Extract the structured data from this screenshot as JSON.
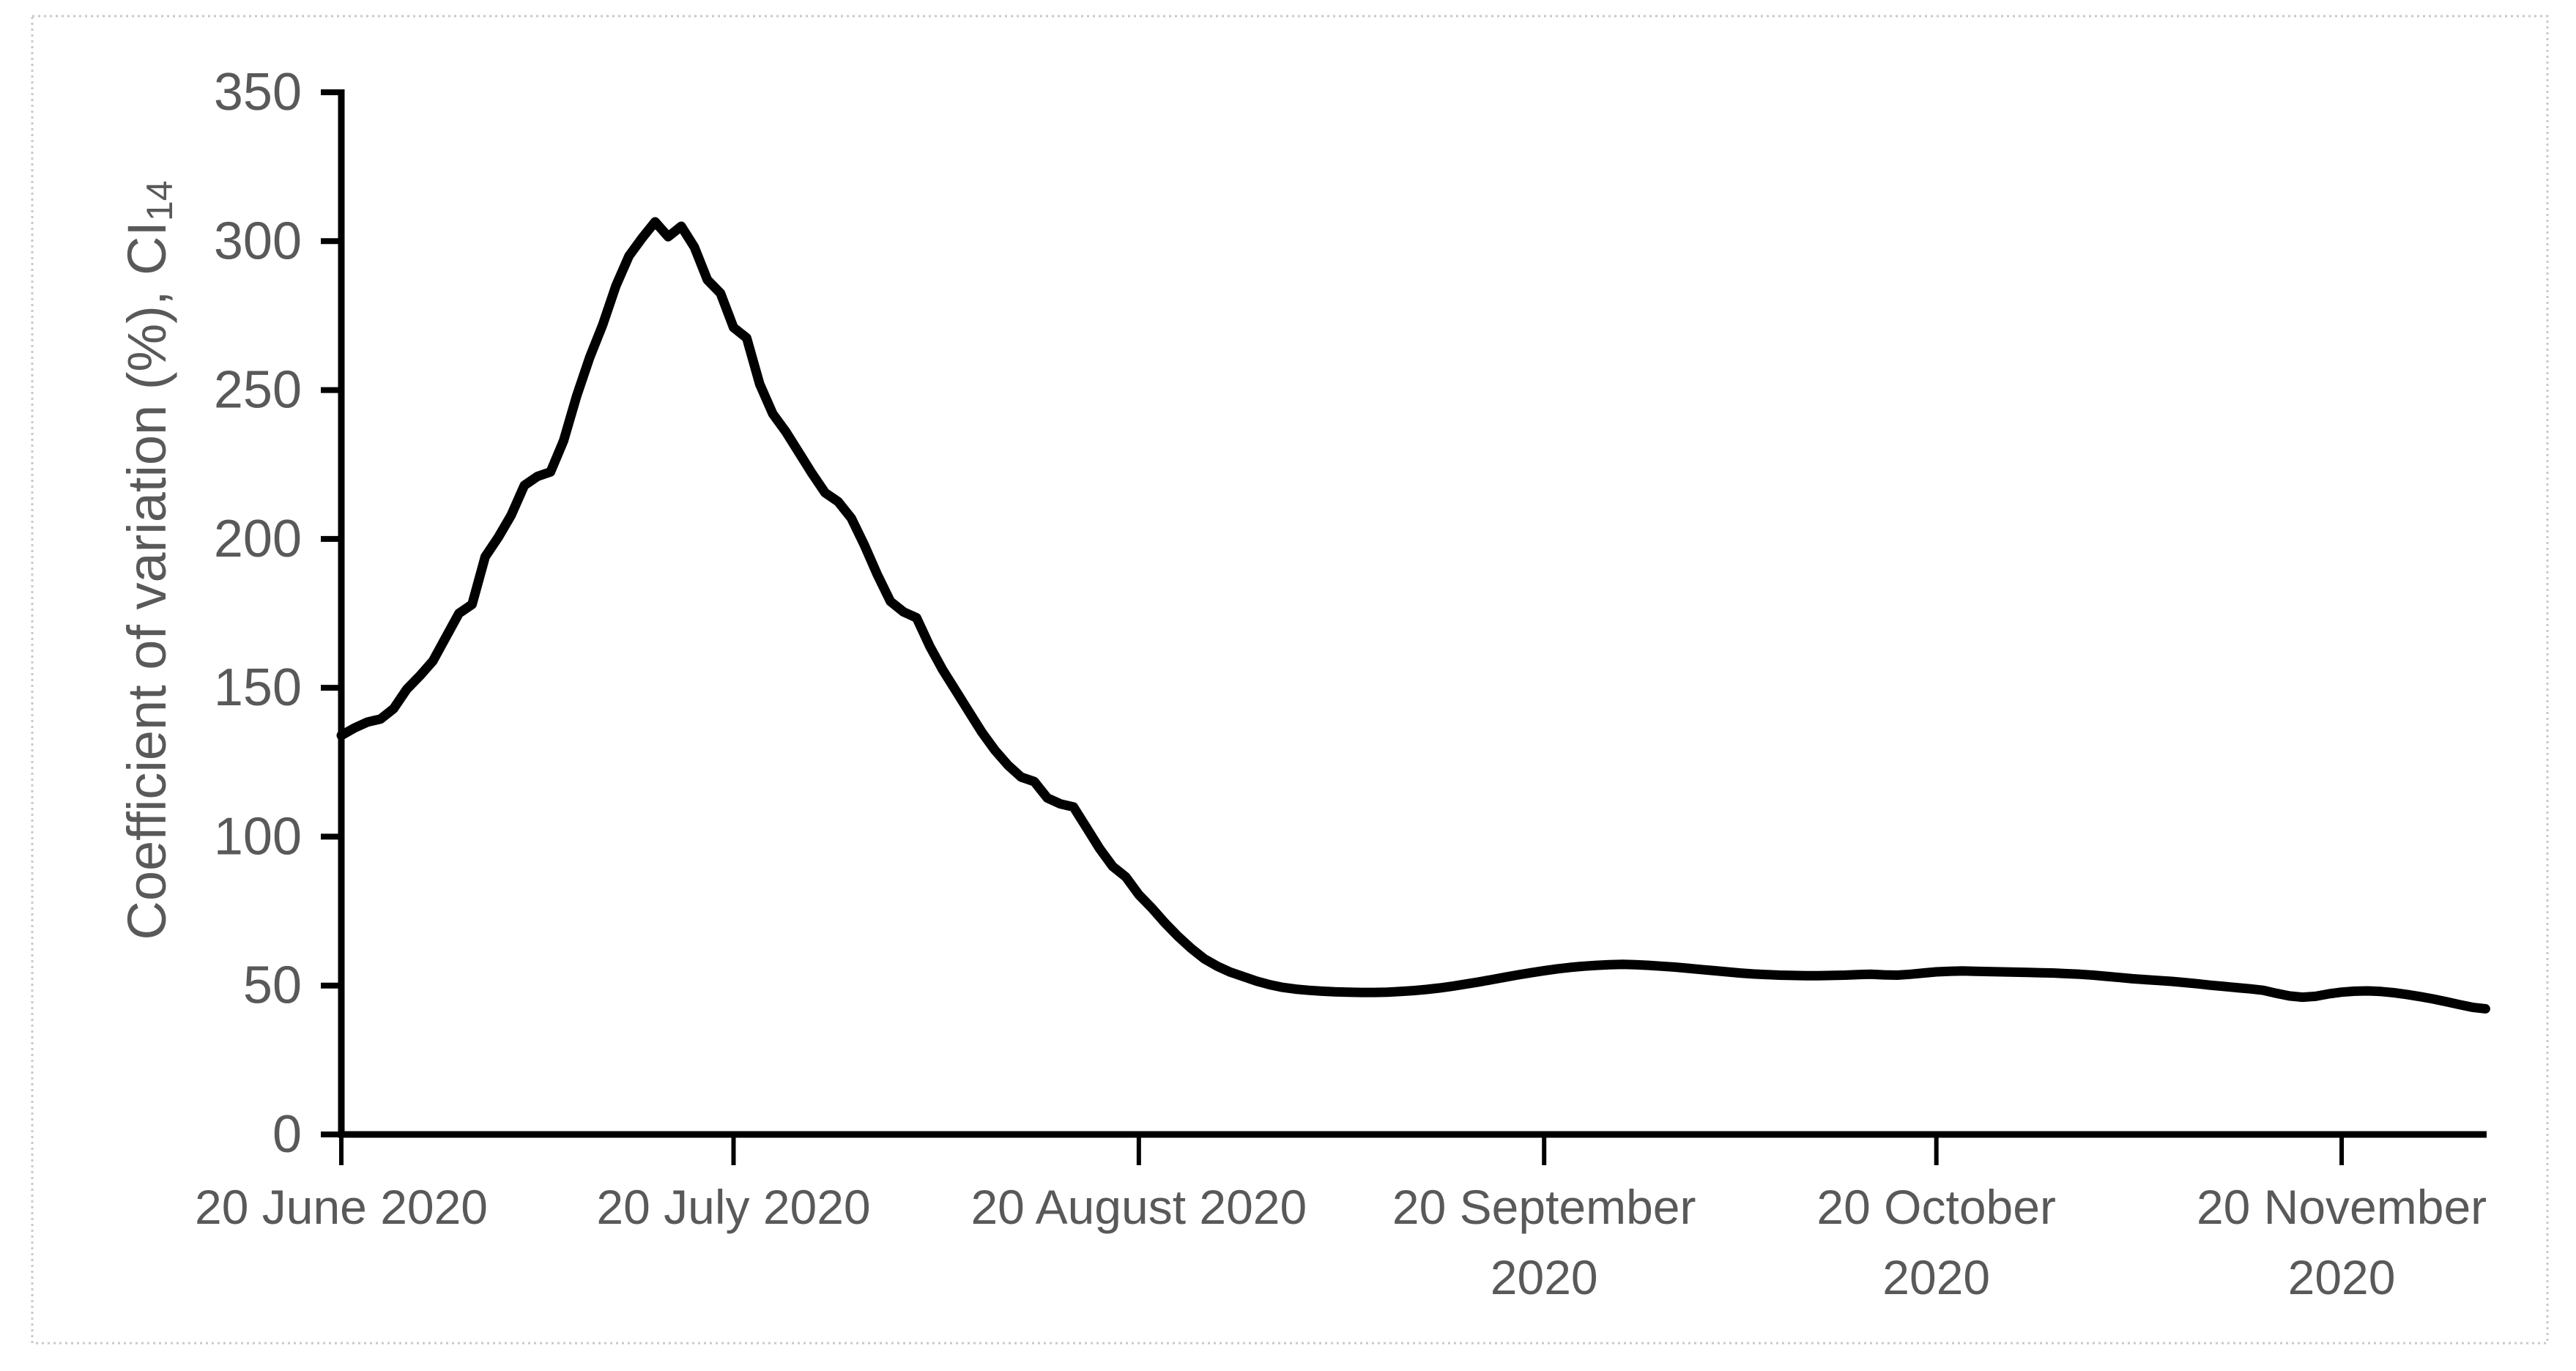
{
  "figure": {
    "type": "excel-style line chart",
    "background_color": "#ffffff",
    "border_color": "#c9c9c9"
  },
  "chart_data": {
    "type": "line",
    "title": "",
    "xlabel": "",
    "ylabel_main": "Coefficient of variation (%), CI",
    "ylabel_subscript": "14",
    "ylim": [
      0,
      350
    ],
    "y_ticks": [
      0,
      50,
      100,
      150,
      200,
      250,
      300,
      350
    ],
    "x_tick_labels": [
      "20 June 2020",
      "20 July 2020",
      "20 August 2020",
      "20 September 2020",
      "20 October 2020",
      "20 November 2020"
    ],
    "x_tick_label_lines": [
      [
        "20 June 2020"
      ],
      [
        "20 July 2020"
      ],
      [
        "20 August 2020"
      ],
      [
        "20 September",
        "2020"
      ],
      [
        "20 October",
        "2020"
      ],
      [
        "20 November",
        "2020"
      ]
    ],
    "x_tick_days_from_start": [
      0,
      30,
      61,
      92,
      122,
      153
    ],
    "x_start_date": "20 June 2020",
    "x_unit": "day",
    "grid": "off",
    "legend": "none",
    "line_color": "#000000",
    "axis_color": "#000000",
    "tick_label_color": "#595959",
    "series_name": "CV(%) CI14",
    "values_daily_from_20_June_2020": [
      134,
      136.5,
      138.5,
      139.5,
      143,
      149.5,
      154,
      159,
      167,
      175,
      178,
      194,
      200.5,
      208,
      218,
      221,
      222.5,
      233,
      248,
      261,
      272,
      285,
      295,
      301,
      306.5,
      301.5,
      305,
      298,
      287,
      282.5,
      271,
      267.5,
      252,
      242,
      236,
      229,
      222,
      215.5,
      212.5,
      207,
      198,
      188,
      179,
      175.5,
      173.5,
      164,
      156,
      149,
      142,
      135,
      129,
      124,
      120,
      118.5,
      113,
      111,
      110,
      103,
      96,
      90,
      86.5,
      80.5,
      76,
      71,
      66.5,
      62.5,
      59,
      56.5,
      54.5,
      53,
      51.5,
      50.3,
      49.4,
      48.8,
      48.4,
      48.1,
      47.9,
      47.8,
      47.7,
      47.7,
      47.8,
      48,
      48.3,
      48.7,
      49.2,
      49.8,
      50.5,
      51.2,
      52,
      52.8,
      53.6,
      54.3,
      55,
      55.6,
      56.1,
      56.5,
      56.8,
      57,
      57.1,
      57,
      56.8,
      56.5,
      56.2,
      55.8,
      55.4,
      55,
      54.6,
      54.2,
      53.9,
      53.7,
      53.5,
      53.4,
      53.3,
      53.3,
      53.4,
      53.5,
      53.7,
      53.8,
      53.6,
      53.5,
      53.8,
      54.2,
      54.6,
      54.8,
      54.9,
      54.8,
      54.7,
      54.6,
      54.5,
      54.4,
      54.3,
      54.2,
      54,
      53.8,
      53.5,
      53.1,
      52.7,
      52.3,
      52,
      51.7,
      51.4,
      51,
      50.6,
      50.1,
      49.7,
      49.3,
      48.9,
      48.4,
      47.4,
      46.5,
      46.1,
      46.4,
      47.2,
      47.8,
      48.1,
      48.2,
      48,
      47.6,
      47,
      46.3,
      45.5,
      44.6,
      43.6,
      42.7,
      42.2
    ]
  }
}
